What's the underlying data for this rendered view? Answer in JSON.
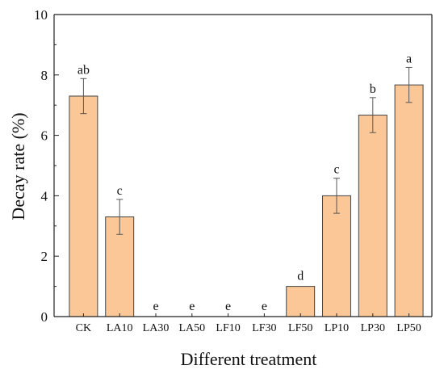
{
  "chart_data": {
    "type": "bar",
    "xlabel": "Different treatment",
    "ylabel": "Decay rate (%)",
    "ylim": [
      0,
      10
    ],
    "yticks": [
      0,
      2,
      4,
      6,
      8,
      10
    ],
    "grid": false,
    "categories": [
      "CK",
      "LA10",
      "LA30",
      "LA50",
      "LF10",
      "LF30",
      "LF50",
      "LP10",
      "LP30",
      "LP50"
    ],
    "values": [
      7.3,
      3.3,
      0,
      0,
      0,
      0,
      1.0,
      4.0,
      6.67,
      7.67
    ],
    "errors": [
      0.58,
      0.58,
      0,
      0,
      0,
      0,
      0,
      0.58,
      0.58,
      0.58
    ],
    "significance_letters": [
      "ab",
      "c",
      "e",
      "e",
      "e",
      "e",
      "d",
      "c",
      "b",
      "a"
    ],
    "bar_fill": "#fbc796",
    "bar_stroke": "#444444"
  }
}
